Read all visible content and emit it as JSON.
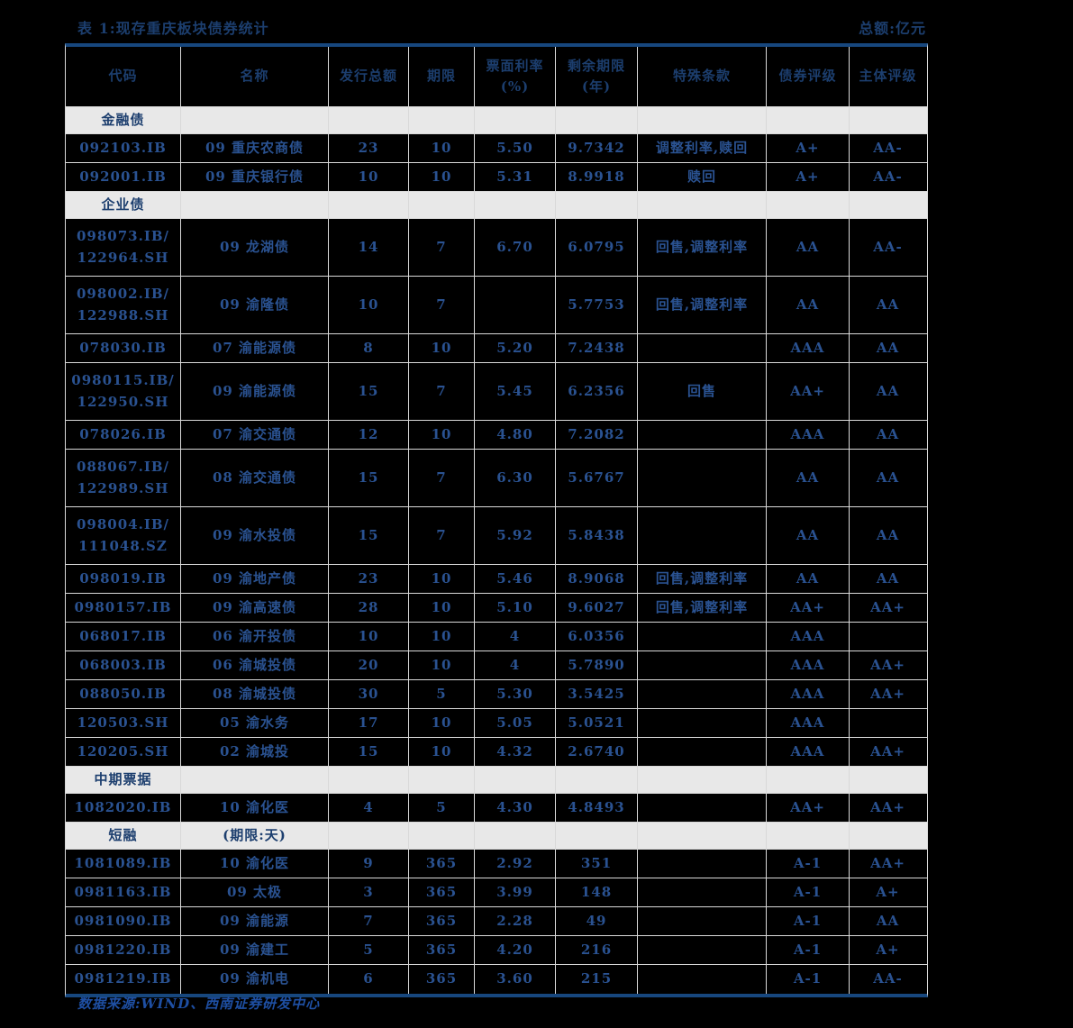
{
  "title": "表 1:现存重庆板块债券统计",
  "unit_note": "总额:亿元",
  "footer": "数据来源:WIND、西南证券研发中心",
  "columns": [
    "代码",
    "名称",
    "发行总额",
    "期限",
    "票面利率\n(%)",
    "剩余期限\n(年)",
    "特殊条款",
    "债券评级",
    "主体评级"
  ],
  "rows": [
    {
      "type": "section",
      "label": "金融债",
      "note": ""
    },
    {
      "type": "data",
      "code": "092103.IB",
      "name": "09 重庆农商债",
      "amount": "23",
      "term": "10",
      "coupon": "5.50",
      "remaining": "9.7342",
      "clauses": "调整利率,赎回",
      "bond_rating": "A+",
      "entity_rating": "AA-"
    },
    {
      "type": "data",
      "code": "092001.IB",
      "name": "09 重庆银行债",
      "amount": "10",
      "term": "10",
      "coupon": "5.31",
      "remaining": "8.9918",
      "clauses": "赎回",
      "bond_rating": "A+",
      "entity_rating": "AA-"
    },
    {
      "type": "section",
      "label": "企业债",
      "note": ""
    },
    {
      "type": "data",
      "code": "098073.IB/\n122964.SH",
      "name": "09 龙湖债",
      "amount": "14",
      "term": "7",
      "coupon": "6.70",
      "remaining": "6.0795",
      "clauses": "回售,调整利率",
      "bond_rating": "AA",
      "entity_rating": "AA-"
    },
    {
      "type": "data",
      "code": "098002.IB/\n122988.SH",
      "name": "09 渝隆债",
      "amount": "10",
      "term": "7",
      "coupon": "",
      "remaining": "5.7753",
      "clauses": "回售,调整利率",
      "bond_rating": "AA",
      "entity_rating": "AA"
    },
    {
      "type": "data",
      "code": "078030.IB",
      "name": "07 渝能源债",
      "amount": "8",
      "term": "10",
      "coupon": "5.20",
      "remaining": "7.2438",
      "clauses": "",
      "bond_rating": "AAA",
      "entity_rating": "AA"
    },
    {
      "type": "data",
      "code": "0980115.IB/\n122950.SH",
      "name": "09 渝能源债",
      "amount": "15",
      "term": "7",
      "coupon": "5.45",
      "remaining": "6.2356",
      "clauses": "回售",
      "bond_rating": "AA+",
      "entity_rating": "AA"
    },
    {
      "type": "data",
      "code": "078026.IB",
      "name": "07 渝交通债",
      "amount": "12",
      "term": "10",
      "coupon": "4.80",
      "remaining": "7.2082",
      "clauses": "",
      "bond_rating": "AAA",
      "entity_rating": "AA"
    },
    {
      "type": "data",
      "code": "088067.IB/\n122989.SH",
      "name": "08 渝交通债",
      "amount": "15",
      "term": "7",
      "coupon": "6.30",
      "remaining": "5.6767",
      "clauses": "",
      "bond_rating": "AA",
      "entity_rating": "AA"
    },
    {
      "type": "data",
      "code": "098004.IB/\n111048.SZ",
      "name": "09 渝水投债",
      "amount": "15",
      "term": "7",
      "coupon": "5.92",
      "remaining": "5.8438",
      "clauses": "",
      "bond_rating": "AA",
      "entity_rating": "AA"
    },
    {
      "type": "data",
      "code": "098019.IB",
      "name": "09 渝地产债",
      "amount": "23",
      "term": "10",
      "coupon": "5.46",
      "remaining": "8.9068",
      "clauses": "回售,调整利率",
      "bond_rating": "AA",
      "entity_rating": "AA"
    },
    {
      "type": "data",
      "code": "0980157.IB",
      "name": "09 渝高速债",
      "amount": "28",
      "term": "10",
      "coupon": "5.10",
      "remaining": "9.6027",
      "clauses": "回售,调整利率",
      "bond_rating": "AA+",
      "entity_rating": "AA+"
    },
    {
      "type": "data",
      "code": "068017.IB",
      "name": "06 渝开投债",
      "amount": "10",
      "term": "10",
      "coupon": "4",
      "remaining": "6.0356",
      "clauses": "",
      "bond_rating": "AAA",
      "entity_rating": ""
    },
    {
      "type": "data",
      "code": "068003.IB",
      "name": "06 渝城投债",
      "amount": "20",
      "term": "10",
      "coupon": "4",
      "remaining": "5.7890",
      "clauses": "",
      "bond_rating": "AAA",
      "entity_rating": "AA+"
    },
    {
      "type": "data",
      "code": "088050.IB",
      "name": "08 渝城投债",
      "amount": "30",
      "term": "5",
      "coupon": "5.30",
      "remaining": "3.5425",
      "clauses": "",
      "bond_rating": "AAA",
      "entity_rating": "AA+"
    },
    {
      "type": "data",
      "code": "120503.SH",
      "name": "05 渝水务",
      "amount": "17",
      "term": "10",
      "coupon": "5.05",
      "remaining": "5.0521",
      "clauses": "",
      "bond_rating": "AAA",
      "entity_rating": ""
    },
    {
      "type": "data",
      "code": "120205.SH",
      "name": "02 渝城投",
      "amount": "15",
      "term": "10",
      "coupon": "4.32",
      "remaining": "2.6740",
      "clauses": "",
      "bond_rating": "AAA",
      "entity_rating": "AA+"
    },
    {
      "type": "section",
      "label": "中期票据",
      "note": ""
    },
    {
      "type": "data",
      "code": "1082020.IB",
      "name": "10 渝化医",
      "amount": "4",
      "term": "5",
      "coupon": "4.30",
      "remaining": "4.8493",
      "clauses": "",
      "bond_rating": "AA+",
      "entity_rating": "AA+"
    },
    {
      "type": "section",
      "label": "短融",
      "note": "(期限:天)"
    },
    {
      "type": "data",
      "code": "1081089.IB",
      "name": "10 渝化医",
      "amount": "9",
      "term": "365",
      "coupon": "2.92",
      "remaining": "351",
      "clauses": "",
      "bond_rating": "A-1",
      "entity_rating": "AA+"
    },
    {
      "type": "data",
      "code": "0981163.IB",
      "name": "09 太极",
      "amount": "3",
      "term": "365",
      "coupon": "3.99",
      "remaining": "148",
      "clauses": "",
      "bond_rating": "A-1",
      "entity_rating": "A+"
    },
    {
      "type": "data",
      "code": "0981090.IB",
      "name": "09 渝能源",
      "amount": "7",
      "term": "365",
      "coupon": "2.28",
      "remaining": "49",
      "clauses": "",
      "bond_rating": "A-1",
      "entity_rating": "AA"
    },
    {
      "type": "data",
      "code": "0981220.IB",
      "name": "09 渝建工",
      "amount": "5",
      "term": "365",
      "coupon": "4.20",
      "remaining": "216",
      "clauses": "",
      "bond_rating": "A-1",
      "entity_rating": "A+"
    },
    {
      "type": "data",
      "code": "0981219.IB",
      "name": "09 渝机电",
      "amount": "6",
      "term": "365",
      "coupon": "3.60",
      "remaining": "215",
      "clauses": "",
      "bond_rating": "A-1",
      "entity_rating": "AA-"
    }
  ],
  "colors": {
    "background": "#000000",
    "heading_navy": "#1c3e6e",
    "data_blue": "#2a5291",
    "section_band": "#e8e8e8",
    "grid_line": "#d9d9d9",
    "thick_rule": "#17477e",
    "footer_blue": "#1e4fa3"
  }
}
